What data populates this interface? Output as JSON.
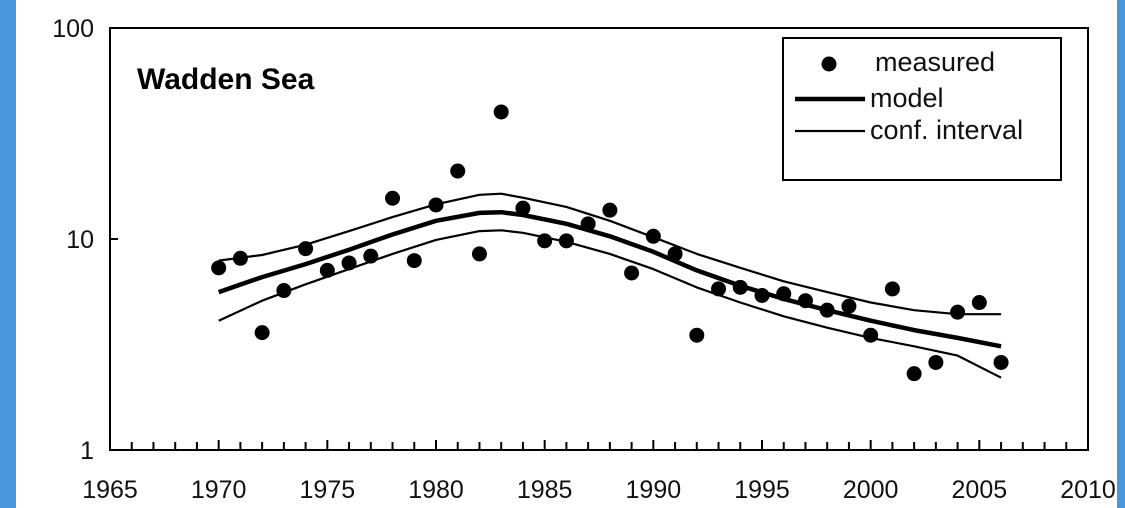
{
  "chart_data": {
    "type": "scatter",
    "title": "Wadden Sea",
    "xlabel": "",
    "ylabel": "",
    "xlim": [
      1965,
      2010
    ],
    "ylim": [
      1,
      100
    ],
    "yscale": "log",
    "grid": false,
    "legend_position": "top-right",
    "x_tick_labels": [
      "1965",
      "1970",
      "1975",
      "1980",
      "1985",
      "1990",
      "1995",
      "2000",
      "2005",
      "2010"
    ],
    "y_tick_labels": [
      "1",
      "10",
      "100"
    ],
    "legend": {
      "measured": "measured",
      "model": "model",
      "conf": "conf. interval"
    },
    "series": [
      {
        "name": "measured",
        "kind": "points",
        "x": [
          1970,
          1971,
          1972,
          1973,
          1974,
          1975,
          1976,
          1977,
          1978,
          1979,
          1980,
          1981,
          1982,
          1983,
          1984,
          1985,
          1986,
          1987,
          1988,
          1989,
          1990,
          1991,
          1992,
          1993,
          1994,
          1995,
          1996,
          1997,
          1998,
          1999,
          2000,
          2001,
          2002,
          2003,
          2004,
          2005,
          2006
        ],
        "y": [
          7.3,
          8.1,
          3.6,
          5.7,
          9.0,
          7.1,
          7.7,
          8.3,
          15.6,
          7.9,
          14.5,
          21.0,
          8.5,
          40.0,
          14.0,
          9.8,
          9.8,
          11.8,
          13.7,
          6.9,
          10.3,
          8.5,
          3.5,
          5.8,
          5.9,
          5.4,
          5.5,
          5.1,
          4.6,
          4.8,
          3.5,
          5.8,
          2.3,
          2.6,
          4.5,
          5.0,
          2.6
        ]
      },
      {
        "name": "model",
        "kind": "line",
        "x": [
          1970,
          1972,
          1974,
          1976,
          1978,
          1980,
          1982,
          1983,
          1984,
          1986,
          1988,
          1990,
          1992,
          1994,
          1996,
          1998,
          2000,
          2002,
          2004,
          2006
        ],
        "y": [
          5.6,
          6.6,
          7.6,
          8.9,
          10.5,
          12.2,
          13.3,
          13.4,
          13.0,
          11.8,
          10.3,
          8.7,
          7.1,
          6.0,
          5.2,
          4.6,
          4.1,
          3.7,
          3.4,
          3.1
        ]
      },
      {
        "name": "conf. interval",
        "kind": "line",
        "x": [
          1970,
          1972,
          1974,
          1976,
          1978,
          1980,
          1982,
          1983,
          1984,
          1986,
          1988,
          1990,
          1992,
          1994,
          1996,
          1998,
          2000,
          2002,
          2004,
          2006
        ],
        "y": [
          7.9,
          8.4,
          9.4,
          10.9,
          12.7,
          14.6,
          16.2,
          16.4,
          15.7,
          14.2,
          12.2,
          10.2,
          8.5,
          7.3,
          6.3,
          5.6,
          5.0,
          4.6,
          4.4,
          4.4
        ]
      },
      {
        "name": "conf. interval",
        "kind": "line",
        "x": [
          1970,
          1972,
          1974,
          1976,
          1978,
          1980,
          1982,
          1983,
          1984,
          1986,
          1988,
          1990,
          1992,
          1994,
          1996,
          1998,
          2000,
          2002,
          2004,
          2006
        ],
        "y": [
          4.1,
          5.1,
          6.1,
          7.2,
          8.5,
          9.9,
          10.9,
          11.0,
          10.7,
          9.7,
          8.5,
          7.2,
          5.9,
          5.0,
          4.3,
          3.8,
          3.4,
          3.1,
          2.8,
          2.2
        ]
      }
    ]
  }
}
